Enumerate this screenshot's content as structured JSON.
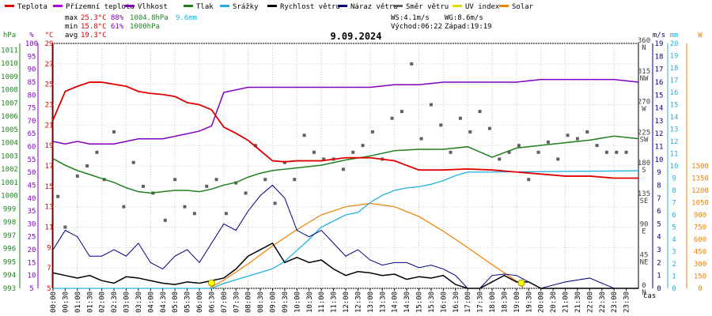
{
  "chart_data": {
    "type": "line",
    "title": "9.09.2024",
    "legend": [
      {
        "name": "Teplota",
        "color": "#e00000"
      },
      {
        "name": "Přízemní teplota",
        "color": "#b000e0"
      },
      {
        "name": "Vlhkost",
        "color": "#8000c0"
      },
      {
        "name": "Tlak",
        "color": "#208020"
      },
      {
        "name": "Srážky",
        "color": "#20b0e0"
      },
      {
        "name": "Rychlost větru",
        "color": "#000000"
      },
      {
        "name": "Náraz větru",
        "color": "#000080"
      },
      {
        "name": "Směr větru",
        "color": "#606060"
      },
      {
        "name": "UV index",
        "color": "#e0e000"
      },
      {
        "name": "Solar",
        "color": "#f08000"
      }
    ],
    "stats": {
      "max": {
        "label": "max",
        "temp": "25.3°C",
        "hum": "88%",
        "press": "1004.8hPa",
        "rain": "9.6mm"
      },
      "min": {
        "label": "min",
        "temp": "15.8°C",
        "hum": "61%",
        "press": "1000hPa"
      },
      "avg": {
        "label": "avg",
        "temp": "19.3°C"
      },
      "wind": "WS:4.1m/s",
      "gust": "WG:8.6m/s",
      "sunrise": "Východ:06:22",
      "sunset": "Západ:19:19"
    },
    "xlabel": "čas",
    "x_ticks": [
      "00:00",
      "00:30",
      "01:00",
      "01:30",
      "02:00",
      "02:30",
      "03:00",
      "03:30",
      "04:00",
      "04:30",
      "05:00",
      "05:30",
      "06:00",
      "06:30",
      "07:00",
      "07:30",
      "08:00",
      "08:30",
      "09:00",
      "09:30",
      "10:00",
      "10:30",
      "11:00",
      "11:30",
      "12:00",
      "12:30",
      "13:00",
      "13:30",
      "14:00",
      "14:30",
      "15:00",
      "15:30",
      "16:00",
      "16:30",
      "17:00",
      "17:30",
      "18:00",
      "18:30",
      "19:00",
      "19:30",
      "20:00",
      "20:30",
      "21:00",
      "21:30",
      "22:00",
      "22:30",
      "23:00",
      "23:30"
    ],
    "axes": {
      "pressure": {
        "unit": "hPa",
        "ticks": [
          "993",
          "994",
          "995",
          "996",
          "997",
          "998",
          "999",
          "1000",
          "1001",
          "1002",
          "1003",
          "1004",
          "1005",
          "1006",
          "1007",
          "1008",
          "1009",
          "1010",
          "1011"
        ],
        "range": [
          993,
          1011.5
        ]
      },
      "humidity": {
        "unit": "%",
        "ticks": [
          "5",
          "10",
          "15",
          "20",
          "25",
          "30",
          "35",
          "40",
          "45",
          "50",
          "55",
          "60",
          "65",
          "70",
          "75",
          "80",
          "85",
          "90",
          "95",
          "100"
        ],
        "range": [
          5,
          100
        ]
      },
      "temperature": {
        "unit": "°C",
        "ticks": [
          "5",
          "7",
          "9",
          "11",
          "13",
          "15",
          "17",
          "19",
          "21",
          "23",
          "25",
          "27",
          "29"
        ],
        "range": [
          5,
          29
        ]
      },
      "direction": {
        "ticks": [
          {
            "v": 0,
            "deg": "0",
            "dir": "N"
          },
          {
            "v": 45,
            "deg": "45",
            "dir": "NE"
          },
          {
            "v": 90,
            "deg": "90",
            "dir": "E"
          },
          {
            "v": 135,
            "deg": "135",
            "dir": "SE"
          },
          {
            "v": 180,
            "deg": "180",
            "dir": "S"
          },
          {
            "v": 225,
            "deg": "225",
            "dir": "SW"
          },
          {
            "v": 270,
            "deg": "270",
            "dir": "W"
          },
          {
            "v": 315,
            "deg": "315",
            "dir": "NW"
          },
          {
            "v": 360,
            "deg": "360",
            "dir": "N"
          }
        ],
        "range": [
          0,
          360
        ]
      },
      "wind": {
        "unit": "m/s",
        "ticks": [
          "0",
          "1",
          "2",
          "3",
          "4",
          "5",
          "6",
          "7",
          "8",
          "9",
          "10",
          "11",
          "12",
          "13",
          "14",
          "15",
          "16",
          "17",
          "18",
          "19"
        ],
        "range": [
          0,
          19
        ]
      },
      "rain": {
        "unit": "mm",
        "ticks": [
          "0",
          "1",
          "2",
          "3",
          "4",
          "5",
          "6",
          "7",
          "8",
          "9",
          "10",
          "11",
          "12",
          "13",
          "14",
          "15",
          "16",
          "17",
          "18",
          "19",
          "20"
        ],
        "range": [
          0,
          20
        ]
      },
      "solar": {
        "unit": "W",
        "ticks": [
          "0",
          "150",
          "300",
          "450",
          "600",
          "750",
          "900",
          "1050",
          "1200",
          "1350",
          "1500"
        ],
        "range": [
          0,
          3000
        ]
      }
    },
    "series": [
      {
        "name": "Teplota",
        "axis": "temperature",
        "x": [
          0,
          0.5,
          1,
          1.5,
          2,
          2.5,
          3,
          3.5,
          4,
          4.5,
          5,
          5.5,
          6,
          6.5,
          7,
          7.5,
          8,
          8.5,
          9,
          9.5,
          10,
          11,
          12,
          13,
          14,
          15,
          16,
          17,
          18,
          19,
          20,
          21,
          22,
          23,
          24
        ],
        "y": [
          21.5,
          24.3,
          24.8,
          25.2,
          25.2,
          25.0,
          24.8,
          24.3,
          24.1,
          24.0,
          23.8,
          23.2,
          23.0,
          22.5,
          20.8,
          20.2,
          19.5,
          18.5,
          17.5,
          17.4,
          17.5,
          17.5,
          17.8,
          17.8,
          17.5,
          16.6,
          16.6,
          16.7,
          16.6,
          16.4,
          16.2,
          16.0,
          16.0,
          15.8,
          15.8
        ]
      },
      {
        "name": "Vlhkost",
        "axis": "humidity",
        "x": [
          0,
          0.5,
          1,
          1.5,
          2,
          2.5,
          3,
          3.5,
          4,
          4.5,
          5,
          5.5,
          6,
          6.5,
          7,
          7.5,
          8,
          9,
          10,
          11,
          12,
          13,
          14,
          15,
          16,
          17,
          18,
          19,
          20,
          21,
          22,
          23,
          24
        ],
        "y": [
          62,
          61,
          62,
          61,
          61,
          61,
          62,
          63,
          63,
          63,
          64,
          65,
          66,
          68,
          81,
          82,
          83,
          83,
          83,
          83,
          83,
          83,
          84,
          84,
          85,
          85,
          85,
          85,
          86,
          86,
          86,
          86,
          85
        ]
      },
      {
        "name": "Tlak",
        "axis": "pressure",
        "x": [
          0,
          0.5,
          1,
          1.5,
          2,
          2.5,
          3,
          3.5,
          4,
          4.5,
          5,
          5.5,
          6,
          6.5,
          7,
          7.5,
          8,
          8.5,
          9,
          9.5,
          10,
          11,
          12,
          13,
          14,
          15,
          16,
          17,
          18,
          19,
          20,
          21,
          22,
          23,
          24
        ],
        "y": [
          1002.8,
          1002.3,
          1001.9,
          1001.6,
          1001.3,
          1001.0,
          1000.6,
          1000.3,
          1000.2,
          1000.3,
          1000.4,
          1000.4,
          1000.3,
          1000.5,
          1000.8,
          1001.0,
          1001.4,
          1001.7,
          1001.9,
          1002.0,
          1002.1,
          1002.3,
          1002.7,
          1003.0,
          1003.4,
          1003.5,
          1003.5,
          1003.7,
          1002.9,
          1003.6,
          1003.8,
          1004.0,
          1004.2,
          1004.5,
          1004.3
        ]
      },
      {
        "name": "Srážky",
        "axis": "rain",
        "x": [
          0,
          6.5,
          7,
          8,
          9,
          9.5,
          10,
          10.5,
          11,
          11.5,
          12,
          12.5,
          13,
          13.5,
          14,
          14.5,
          15,
          15.5,
          16,
          16.5,
          17,
          17.5,
          18,
          24
        ],
        "y": [
          0,
          0,
          0.4,
          1.0,
          1.6,
          2.2,
          3.1,
          4.0,
          5.0,
          5.5,
          6.0,
          6.2,
          7.0,
          7.6,
          8.0,
          8.2,
          8.3,
          8.5,
          8.8,
          9.2,
          9.5,
          9.5,
          9.5,
          9.6
        ]
      },
      {
        "name": "Solar",
        "axis": "solar",
        "x": [
          6.4,
          7,
          8,
          9,
          10,
          11,
          12,
          13,
          14,
          15,
          16,
          17,
          18,
          19,
          19.3
        ],
        "y": [
          0,
          100,
          300,
          520,
          720,
          900,
          1000,
          1040,
          1000,
          880,
          700,
          500,
          290,
          90,
          0
        ]
      },
      {
        "name": "Rychlost větru",
        "axis": "wind",
        "x": [
          0,
          0.5,
          1,
          1.5,
          2,
          2.5,
          3,
          3.5,
          4,
          4.5,
          5,
          5.5,
          6,
          6.5,
          7,
          7.5,
          8,
          8.5,
          9,
          9.5,
          10,
          10.5,
          11,
          11.5,
          12,
          12.5,
          13,
          13.5,
          14,
          14.5,
          15,
          15.5,
          16,
          16.5,
          17,
          17.5,
          18,
          18.5,
          19,
          19.5,
          20,
          21,
          22,
          23,
          24
        ],
        "y": [
          1.2,
          1.0,
          0.8,
          1.0,
          0.6,
          0.4,
          0.9,
          0.8,
          0.6,
          0.4,
          0.3,
          0.5,
          0.4,
          0.6,
          0.8,
          1.5,
          2.5,
          3.0,
          3.5,
          2.0,
          2.4,
          2.0,
          2.2,
          1.5,
          1.0,
          1.3,
          1.2,
          1.0,
          1.1,
          0.7,
          0.9,
          0.8,
          1.0,
          0.3,
          0.0,
          0.0,
          0.5,
          1.0,
          0.5,
          0.5,
          0.0,
          0.0,
          0.0,
          0.0,
          0.0
        ]
      },
      {
        "name": "Náraz větru",
        "axis": "wind",
        "x": [
          0,
          0.5,
          1,
          1.5,
          2,
          2.5,
          3,
          3.5,
          4,
          4.5,
          5,
          5.5,
          6,
          6.5,
          7,
          7.5,
          8,
          8.5,
          9,
          9.5,
          10,
          10.5,
          11,
          11.5,
          12,
          12.5,
          13,
          13.5,
          14,
          14.5,
          15,
          15.5,
          16,
          16.5,
          17,
          17.5,
          18,
          18.5,
          19,
          19.5,
          20,
          21,
          22,
          23,
          24
        ],
        "y": [
          3.0,
          4.5,
          4.0,
          2.5,
          2.5,
          3.0,
          2.5,
          3.5,
          2.0,
          1.5,
          2.5,
          3.0,
          2.0,
          3.5,
          5.0,
          4.5,
          6.0,
          7.2,
          8.0,
          7.0,
          4.5,
          4.0,
          4.5,
          3.5,
          2.5,
          3.0,
          2.2,
          1.8,
          2.0,
          2.0,
          1.6,
          1.8,
          1.5,
          1.0,
          0.0,
          0.0,
          1.0,
          1.1,
          1.0,
          0.5,
          0.0,
          0.5,
          0.8,
          0.0,
          0.0
        ]
      },
      {
        "name": "Směr větru",
        "axis": "direction",
        "type": "scatter",
        "x": [
          0.2,
          0.5,
          1.0,
          1.4,
          1.8,
          2.1,
          2.5,
          2.9,
          3.3,
          3.7,
          4.1,
          4.6,
          5.0,
          5.4,
          5.8,
          6.3,
          6.7,
          7.1,
          7.5,
          7.9,
          8.3,
          8.7,
          9.1,
          9.5,
          9.9,
          10.3,
          10.7,
          11.1,
          11.5,
          11.9,
          12.3,
          12.7,
          13.1,
          13.5,
          13.9,
          14.3,
          14.7,
          15.1,
          15.5,
          15.9,
          16.3,
          16.7,
          17.1,
          17.5,
          17.9,
          18.3,
          18.7,
          19.1,
          19.5,
          19.9,
          20.3,
          20.7,
          21.1,
          21.5,
          21.9,
          22.3,
          22.7,
          23.1,
          23.5
        ],
        "y": [
          135,
          90,
          165,
          180,
          200,
          160,
          230,
          120,
          185,
          150,
          140,
          100,
          160,
          120,
          110,
          150,
          160,
          110,
          155,
          140,
          210,
          160,
          125,
          185,
          160,
          225,
          200,
          190,
          190,
          175,
          200,
          210,
          230,
          190,
          250,
          260,
          330,
          220,
          270,
          240,
          200,
          250,
          230,
          260,
          235,
          190,
          200,
          210,
          160,
          200,
          215,
          190,
          225,
          220,
          230,
          210,
          200,
          200,
          200
        ]
      },
      {
        "name": "UV index",
        "axis": "wind",
        "type": "marker",
        "x": [
          6.5,
          19.2
        ],
        "y": [
          0.3,
          0.3
        ]
      }
    ]
  }
}
